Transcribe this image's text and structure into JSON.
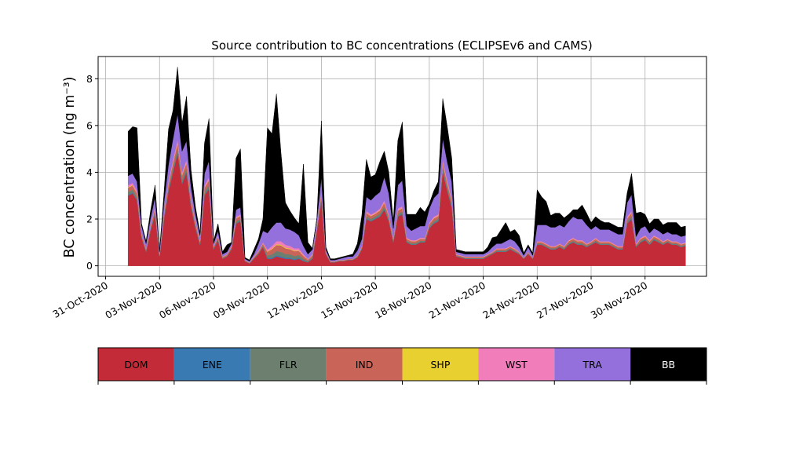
{
  "chart_data": {
    "type": "area",
    "stacked": true,
    "title": "Source contribution to BC concentrations (ECLIPSEv6 and CAMS)",
    "ylabel": "BC concentration (ng m⁻³)",
    "xlabel": "",
    "x_range": [
      "2020-10-30T14:00",
      "2020-12-03T10:00"
    ],
    "ylim": [
      -0.45,
      8.95
    ],
    "yticks": [
      0,
      2,
      4,
      6,
      8
    ],
    "xticks": [
      "31-Oct-2020",
      "03-Nov-2020",
      "06-Nov-2020",
      "09-Nov-2020",
      "12-Nov-2020",
      "15-Nov-2020",
      "18-Nov-2020",
      "21-Nov-2020",
      "24-Nov-2020",
      "27-Nov-2020",
      "30-Nov-2020"
    ],
    "grid": true,
    "legend": "bottom color bar",
    "series": [
      {
        "name": "DOM",
        "color": "#c42b38"
      },
      {
        "name": "ENE",
        "color": "#3a7ab3"
      },
      {
        "name": "FLR",
        "color": "#6d7f6e"
      },
      {
        "name": "IND",
        "color": "#c96558"
      },
      {
        "name": "SHP",
        "color": "#e8d030"
      },
      {
        "name": "WST",
        "color": "#f17dbb"
      },
      {
        "name": "TRA",
        "color": "#9370db"
      },
      {
        "name": "BB",
        "color": "#000000"
      }
    ],
    "anchor_times": [
      "2020-11-01T06:00",
      "2020-11-01T12:00",
      "2020-11-01T18:00",
      "2020-11-02T00:00",
      "2020-11-02T06:00",
      "2020-11-02T12:00",
      "2020-11-02T18:00",
      "2020-11-03T00:00",
      "2020-11-03T06:00",
      "2020-11-03T12:00",
      "2020-11-03T18:00",
      "2020-11-04T00:00",
      "2020-11-04T06:00",
      "2020-11-04T12:00",
      "2020-11-04T18:00",
      "2020-11-05T00:00",
      "2020-11-05T06:00",
      "2020-11-05T12:00",
      "2020-11-05T18:00",
      "2020-11-06T00:00",
      "2020-11-06T06:00",
      "2020-11-06T12:00",
      "2020-11-06T18:00",
      "2020-11-07T00:00",
      "2020-11-07T06:00",
      "2020-11-07T12:00",
      "2020-11-07T18:00",
      "2020-11-08T00:00",
      "2020-11-08T06:00",
      "2020-11-08T12:00",
      "2020-11-08T18:00",
      "2020-11-09T00:00",
      "2020-11-09T06:00",
      "2020-11-09T12:00",
      "2020-11-09T18:00",
      "2020-11-10T00:00",
      "2020-11-10T06:00",
      "2020-11-10T12:00",
      "2020-11-10T18:00",
      "2020-11-11T00:00",
      "2020-11-11T06:00",
      "2020-11-11T12:00",
      "2020-11-11T18:00",
      "2020-11-12T00:00",
      "2020-11-12T06:00",
      "2020-11-12T12:00",
      "2020-11-12T18:00",
      "2020-11-13T00:00",
      "2020-11-13T06:00",
      "2020-11-13T12:00",
      "2020-11-13T18:00",
      "2020-11-14T00:00",
      "2020-11-14T06:00",
      "2020-11-14T12:00",
      "2020-11-14T18:00",
      "2020-11-15T00:00",
      "2020-11-15T06:00",
      "2020-11-15T12:00",
      "2020-11-15T18:00",
      "2020-11-16T00:00",
      "2020-11-16T06:00",
      "2020-11-16T12:00",
      "2020-11-16T18:00",
      "2020-11-17T00:00",
      "2020-11-17T06:00",
      "2020-11-17T12:00",
      "2020-11-17T18:00",
      "2020-11-18T00:00",
      "2020-11-18T06:00",
      "2020-11-18T12:00",
      "2020-11-18T18:00",
      "2020-11-19T00:00",
      "2020-11-19T06:00",
      "2020-11-19T12:00",
      "2020-11-19T18:00",
      "2020-11-20T00:00",
      "2020-11-20T06:00",
      "2020-11-20T12:00",
      "2020-11-20T18:00",
      "2020-11-21T00:00",
      "2020-11-21T06:00",
      "2020-11-21T12:00",
      "2020-11-21T18:00",
      "2020-11-22T00:00",
      "2020-11-22T06:00",
      "2020-11-22T12:00",
      "2020-11-22T18:00",
      "2020-11-23T00:00",
      "2020-11-23T06:00",
      "2020-11-23T12:00",
      "2020-11-23T18:00",
      "2020-11-24T00:00",
      "2020-11-24T06:00",
      "2020-11-24T12:00",
      "2020-11-24T18:00",
      "2020-11-25T00:00",
      "2020-11-25T06:00",
      "2020-11-25T12:00",
      "2020-11-25T18:00",
      "2020-11-26T00:00",
      "2020-11-26T06:00",
      "2020-11-26T12:00",
      "2020-11-26T18:00",
      "2020-11-27T00:00",
      "2020-11-27T06:00",
      "2020-11-27T12:00",
      "2020-11-27T18:00",
      "2020-11-28T00:00",
      "2020-11-28T06:00",
      "2020-11-28T12:00",
      "2020-11-28T18:00",
      "2020-11-29T00:00",
      "2020-11-29T06:00",
      "2020-11-29T12:00",
      "2020-11-29T18:00",
      "2020-11-30T00:00",
      "2020-11-30T06:00",
      "2020-11-30T12:00",
      "2020-11-30T18:00",
      "2020-12-01T00:00",
      "2020-12-01T06:00",
      "2020-12-01T12:00",
      "2020-12-01T18:00",
      "2020-12-02T00:00",
      "2020-12-02T06:00"
    ],
    "anchor_dom": [
      3.0,
      3.1,
      2.8,
      1.2,
      0.6,
      1.5,
      2.2,
      0.4,
      2.0,
      3.2,
      4.0,
      4.8,
      3.5,
      4.0,
      2.5,
      1.6,
      0.9,
      3.0,
      3.3,
      0.7,
      1.1,
      0.3,
      0.4,
      0.7,
      1.8,
      1.9,
      0.2,
      0.1,
      0.3,
      0.5,
      0.8,
      0.3,
      0.3,
      0.4,
      0.35,
      0.3,
      0.3,
      0.25,
      0.3,
      0.2,
      0.15,
      0.3,
      1.5,
      2.8,
      0.5,
      0.15,
      0.15,
      0.2,
      0.2,
      0.25,
      0.25,
      0.35,
      0.7,
      2.0,
      1.9,
      2.0,
      2.1,
      2.4,
      1.9,
      1.0,
      2.1,
      2.2,
      1.0,
      0.9,
      0.9,
      1.0,
      1.0,
      1.6,
      1.8,
      1.9,
      4.0,
      3.2,
      2.5,
      0.4,
      0.35,
      0.3,
      0.3,
      0.3,
      0.3,
      0.3,
      0.4,
      0.5,
      0.6,
      0.6,
      0.6,
      0.7,
      0.6,
      0.5,
      0.3,
      0.5,
      0.3,
      0.9,
      0.9,
      0.8,
      0.7,
      0.7,
      0.8,
      0.7,
      0.9,
      1.0,
      0.9,
      0.9,
      0.8,
      0.9,
      1.0,
      0.9,
      0.9,
      0.9,
      0.8,
      0.7,
      0.7,
      1.8,
      2.0,
      0.8,
      1.0,
      1.1,
      0.9,
      1.1,
      1.0,
      0.9,
      1.0,
      0.9,
      0.9,
      0.8,
      0.85
    ],
    "anchor_other": [
      0.45,
      0.45,
      0.4,
      0.2,
      0.15,
      0.25,
      0.35,
      0.1,
      0.35,
      0.45,
      0.55,
      0.6,
      0.5,
      0.55,
      0.4,
      0.3,
      0.2,
      0.45,
      0.5,
      0.15,
      0.2,
      0.1,
      0.1,
      0.15,
      0.3,
      0.3,
      0.05,
      0.05,
      0.1,
      0.15,
      0.2,
      0.4,
      0.55,
      0.65,
      0.7,
      0.6,
      0.55,
      0.5,
      0.45,
      0.3,
      0.15,
      0.2,
      0.25,
      0.4,
      0.1,
      0.05,
      0.05,
      0.05,
      0.05,
      0.05,
      0.05,
      0.1,
      0.15,
      0.35,
      0.3,
      0.3,
      0.35,
      0.4,
      0.3,
      0.2,
      0.35,
      0.35,
      0.2,
      0.2,
      0.2,
      0.2,
      0.2,
      0.25,
      0.3,
      0.3,
      0.55,
      0.45,
      0.4,
      0.1,
      0.1,
      0.1,
      0.1,
      0.1,
      0.1,
      0.1,
      0.1,
      0.1,
      0.15,
      0.15,
      0.15,
      0.15,
      0.15,
      0.1,
      0.05,
      0.1,
      0.05,
      0.15,
      0.15,
      0.15,
      0.15,
      0.15,
      0.15,
      0.15,
      0.2,
      0.2,
      0.2,
      0.2,
      0.15,
      0.15,
      0.2,
      0.15,
      0.15,
      0.15,
      0.15,
      0.15,
      0.15,
      0.3,
      0.35,
      0.15,
      0.2,
      0.2,
      0.2,
      0.2,
      0.2,
      0.15,
      0.15,
      0.15,
      0.15,
      0.15,
      0.15
    ],
    "anchor_tra": [
      0.4,
      0.4,
      0.4,
      0.3,
      0.2,
      0.3,
      0.4,
      0.1,
      0.4,
      0.7,
      0.9,
      1.1,
      0.9,
      0.8,
      0.5,
      0.3,
      0.2,
      0.5,
      0.7,
      0.1,
      0.2,
      0.1,
      0.1,
      0.1,
      0.3,
      0.3,
      0.05,
      0.05,
      0.1,
      0.3,
      0.5,
      0.7,
      0.8,
      0.8,
      0.8,
      0.7,
      0.7,
      0.7,
      0.55,
      0.35,
      0.2,
      0.2,
      0.25,
      0.6,
      0.1,
      0.05,
      0.05,
      0.05,
      0.1,
      0.1,
      0.1,
      0.2,
      0.3,
      0.6,
      0.6,
      0.7,
      0.7,
      1.0,
      0.9,
      0.4,
      1.0,
      1.1,
      0.5,
      0.4,
      0.5,
      0.5,
      0.5,
      0.6,
      0.8,
      0.9,
      0.9,
      0.8,
      0.7,
      0.1,
      0.1,
      0.1,
      0.1,
      0.1,
      0.1,
      0.1,
      0.1,
      0.2,
      0.2,
      0.2,
      0.3,
      0.3,
      0.3,
      0.2,
      0.1,
      0.2,
      0.1,
      0.7,
      0.7,
      0.8,
      0.8,
      0.8,
      0.8,
      0.8,
      0.8,
      0.9,
      0.9,
      0.9,
      0.8,
      0.5,
      0.5,
      0.5,
      0.5,
      0.5,
      0.5,
      0.5,
      0.5,
      0.6,
      0.7,
      0.3,
      0.4,
      0.4,
      0.3,
      0.3,
      0.3,
      0.3,
      0.3,
      0.3,
      0.3,
      0.3,
      0.3
    ],
    "anchor_bb": [
      1.9,
      2.0,
      2.3,
      0.1,
      0.1,
      0.3,
      0.5,
      0.05,
      0.4,
      1.5,
      1.2,
      2.0,
      1.2,
      1.9,
      0.7,
      0.3,
      0.1,
      1.3,
      1.8,
      0.1,
      0.3,
      0.1,
      0.3,
      0.05,
      2.2,
      2.5,
      0.05,
      0.05,
      0.2,
      0.2,
      0.5,
      4.5,
      4.0,
      5.5,
      3.0,
      1.1,
      0.8,
      0.6,
      0.5,
      3.5,
      0.5,
      0.05,
      0.05,
      2.4,
      0.1,
      0.05,
      0.05,
      0.05,
      0.05,
      0.05,
      0.1,
      0.3,
      1.0,
      1.6,
      1.0,
      0.9,
      1.3,
      1.1,
      0.9,
      0.3,
      1.9,
      2.5,
      0.5,
      0.7,
      0.6,
      0.8,
      0.6,
      0.2,
      0.3,
      0.5,
      1.7,
      1.5,
      1.0,
      0.1,
      0.1,
      0.1,
      0.1,
      0.1,
      0.1,
      0.1,
      0.2,
      0.4,
      0.3,
      0.6,
      0.8,
      0.3,
      0.5,
      0.5,
      0.1,
      0.1,
      0.1,
      1.5,
      1.2,
      1.0,
      0.5,
      0.6,
      0.5,
      0.4,
      0.3,
      0.3,
      0.4,
      0.6,
      0.5,
      0.3,
      0.4,
      0.4,
      0.3,
      0.3,
      0.3,
      0.3,
      0.3,
      0.4,
      0.9,
      1.0,
      0.7,
      0.5,
      0.4,
      0.4,
      0.5,
      0.4,
      0.4,
      0.5,
      0.5,
      0.4,
      0.4
    ]
  }
}
